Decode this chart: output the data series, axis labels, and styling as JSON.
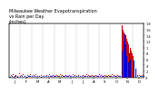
{
  "title": "Milwaukee Weather Evapotranspiration\nvs Rain per Day\n(Inches)",
  "title_fontsize": 3.5,
  "background_color": "#ffffff",
  "grid_color": "#aaaaaa",
  "xlim": [
    0,
    365
  ],
  "ylim": [
    0,
    1.8
  ],
  "ylabel_right": [
    "0",
    ".2",
    ".4",
    ".6",
    ".8",
    "1",
    "1.2",
    "1.4",
    "1.6",
    "1.8"
  ],
  "ylabel_right_vals": [
    0,
    0.2,
    0.4,
    0.6,
    0.8,
    1.0,
    1.2,
    1.4,
    1.6,
    1.8
  ],
  "vgrid_positions": [
    30,
    61,
    91,
    122,
    152,
    183,
    213,
    244,
    274,
    305,
    335
  ],
  "xtick_positions": [
    15,
    46,
    76,
    107,
    137,
    168,
    198,
    229,
    259,
    290,
    320,
    351
  ],
  "xtick_labels": [
    "J",
    "F",
    "M",
    "A",
    "M",
    "J",
    "J",
    "A",
    "S",
    "O",
    "N",
    "D"
  ],
  "rain_color": "#cc0000",
  "et_color": "#0000cc",
  "rain_days": [
    4,
    9,
    14,
    18,
    22,
    27,
    32,
    38,
    43,
    48,
    53,
    57,
    62,
    67,
    72,
    77,
    82,
    87,
    92,
    97,
    102,
    107,
    112,
    118,
    123,
    128,
    133,
    138,
    143,
    148,
    153,
    158,
    163,
    168,
    173,
    178,
    183,
    188,
    193,
    198,
    203,
    208,
    213,
    218,
    223,
    228,
    233,
    238,
    243,
    248,
    253,
    258,
    263,
    268,
    273,
    278,
    283,
    288,
    293,
    298,
    308,
    316,
    321,
    326,
    332,
    341,
    346,
    351,
    356,
    361
  ],
  "rain_vals": [
    0.08,
    0.12,
    0.05,
    0.09,
    0.06,
    0.13,
    0.07,
    0.11,
    0.04,
    0.08,
    0.06,
    0.1,
    0.05,
    0.08,
    0.11,
    0.06,
    0.04,
    0.09,
    0.06,
    0.05,
    0.08,
    0.1,
    0.06,
    0.09,
    0.05,
    0.08,
    0.06,
    0.1,
    0.08,
    0.06,
    0.09,
    0.05,
    0.08,
    0.06,
    0.1,
    0.07,
    0.06,
    0.09,
    0.05,
    0.08,
    0.06,
    0.1,
    0.08,
    0.06,
    0.09,
    0.05,
    0.08,
    0.06,
    0.1,
    0.07,
    0.06,
    0.09,
    0.05,
    0.08,
    0.06,
    0.1,
    0.07,
    0.06,
    0.09,
    0.05,
    0.12,
    0.09,
    0.11,
    0.14,
    0.08,
    0.1,
    0.07,
    0.09,
    0.06,
    0.08
  ],
  "et_days": [
    2,
    7,
    12,
    17,
    23,
    29,
    35,
    41,
    46,
    51,
    56,
    61,
    66,
    71,
    76,
    81,
    86,
    91,
    96,
    101,
    106,
    111,
    116,
    121,
    126,
    131,
    136,
    141,
    146,
    151,
    156,
    161,
    166,
    171,
    176,
    181,
    186,
    191,
    196,
    201,
    206,
    211,
    216,
    221,
    226,
    231,
    236,
    241,
    246,
    251,
    256,
    261,
    266,
    271,
    276,
    281,
    286,
    291,
    296,
    301,
    311,
    318,
    323,
    328,
    334,
    343,
    348,
    353,
    358,
    363
  ],
  "et_vals": [
    0.03,
    0.04,
    0.02,
    0.05,
    0.03,
    0.06,
    0.04,
    0.05,
    0.03,
    0.04,
    0.05,
    0.06,
    0.04,
    0.05,
    0.06,
    0.04,
    0.03,
    0.05,
    0.04,
    0.06,
    0.05,
    0.04,
    0.06,
    0.05,
    0.04,
    0.06,
    0.05,
    0.04,
    0.06,
    0.05,
    0.04,
    0.06,
    0.05,
    0.04,
    0.06,
    0.05,
    0.04,
    0.06,
    0.05,
    0.04,
    0.06,
    0.05,
    0.04,
    0.06,
    0.05,
    0.04,
    0.06,
    0.05,
    0.04,
    0.06,
    0.05,
    0.04,
    0.06,
    0.05,
    0.04,
    0.06,
    0.05,
    0.04,
    0.06,
    0.05,
    0.07,
    0.05,
    0.06,
    0.08,
    0.05,
    0.06,
    0.05,
    0.06,
    0.04,
    0.05
  ],
  "big_red_bars": [
    [
      305,
      1.75
    ],
    [
      308,
      1.6
    ],
    [
      311,
      1.5
    ],
    [
      314,
      1.4
    ],
    [
      317,
      1.3
    ],
    [
      320,
      1.2
    ],
    [
      323,
      1.1
    ],
    [
      326,
      1.0
    ],
    [
      329,
      0.9
    ],
    [
      332,
      0.8
    ],
    [
      335,
      0.7
    ]
  ],
  "big_blue_bars": [
    [
      306,
      0.9
    ],
    [
      309,
      1.2
    ],
    [
      312,
      1.45
    ],
    [
      315,
      1.1
    ],
    [
      318,
      0.7
    ],
    [
      321,
      0.5
    ],
    [
      324,
      0.8
    ],
    [
      327,
      0.6
    ]
  ],
  "single_blue_bar": [
    338,
    0.55
  ],
  "single_blue_bar2": [
    341,
    0.3
  ]
}
